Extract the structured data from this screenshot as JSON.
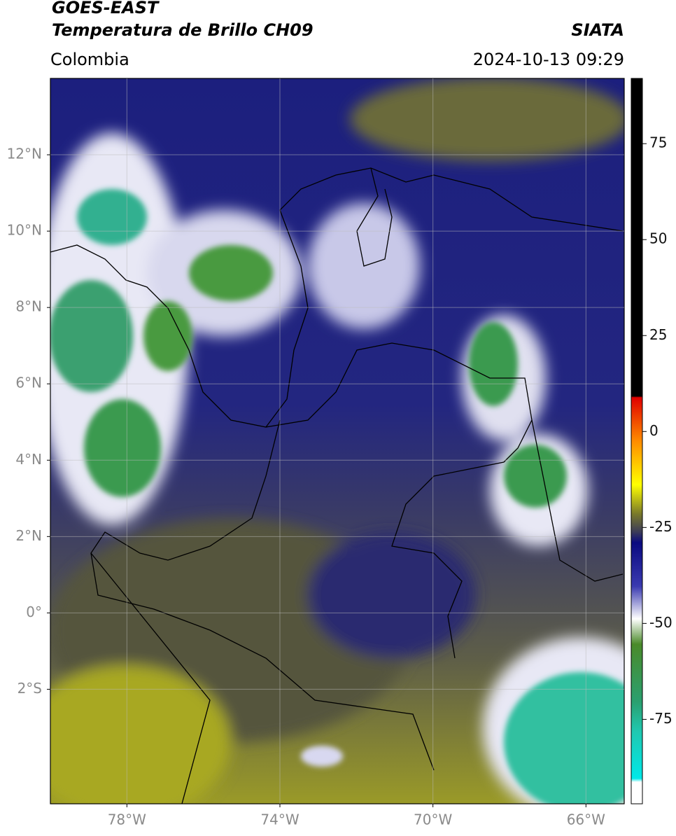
{
  "header": {
    "title": "GOES-EAST",
    "subtitle": "Temperatura de Brillo CH09",
    "region": "Colombia",
    "source": "SIATA",
    "datetime": "2024-10-13 09:29"
  },
  "map": {
    "xlim": [
      -80,
      -65
    ],
    "ylim": [
      -5,
      14
    ],
    "xticks": [
      {
        "value": -78,
        "label": "78°W"
      },
      {
        "value": -74,
        "label": "74°W"
      },
      {
        "value": -70,
        "label": "70°W"
      },
      {
        "value": -66,
        "label": "66°W"
      }
    ],
    "yticks": [
      {
        "value": 12,
        "label": "12°N"
      },
      {
        "value": 10,
        "label": "10°N"
      },
      {
        "value": 8,
        "label": "8°N"
      },
      {
        "value": 6,
        "label": "6°N"
      },
      {
        "value": 4,
        "label": "4°N"
      },
      {
        "value": 2,
        "label": "2°N"
      },
      {
        "value": 0,
        "label": "0°"
      },
      {
        "value": -2,
        "label": "2°S"
      }
    ],
    "grid": true
  },
  "colorbar": {
    "lim": [
      -97,
      92
    ],
    "ticks": [
      75,
      50,
      25,
      0,
      -25,
      -50,
      -75
    ]
  }
}
